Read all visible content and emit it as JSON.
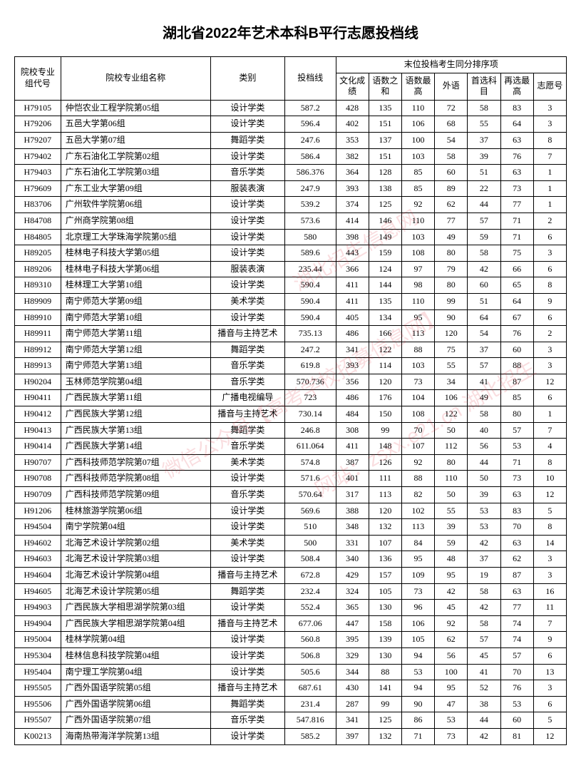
{
  "title": "湖北省2022年艺术本科B平行志愿投档线",
  "headers": {
    "code": "院校专业组代号",
    "name": "院校专业组名称",
    "category": "类别",
    "score": "投档线",
    "tiebreak_group": "末位投档考生同分排序项",
    "culture": "文化成绩",
    "sum2": "语数之和",
    "max2": "语数最高",
    "foreign": "外语",
    "first": "首选科目",
    "re_high": "再选最高",
    "wish": "志愿号"
  },
  "col_widths": {
    "code": "56px",
    "name": "182px",
    "category": "90px",
    "score": "62px",
    "small": "40px"
  },
  "rows": [
    [
      "H79105",
      "仲恺农业工程学院第05组",
      "设计学类",
      "587.2",
      "428",
      "135",
      "110",
      "72",
      "58",
      "83",
      "3"
    ],
    [
      "H79206",
      "五邑大学第06组",
      "设计学类",
      "596.4",
      "402",
      "151",
      "106",
      "68",
      "55",
      "64",
      "3"
    ],
    [
      "H79207",
      "五邑大学第07组",
      "舞蹈学类",
      "247.6",
      "353",
      "137",
      "100",
      "54",
      "37",
      "63",
      "8"
    ],
    [
      "H79402",
      "广东石油化工学院第02组",
      "设计学类",
      "586.4",
      "382",
      "151",
      "103",
      "58",
      "39",
      "76",
      "7"
    ],
    [
      "H79403",
      "广东石油化工学院第03组",
      "音乐学类",
      "586.376",
      "364",
      "128",
      "85",
      "60",
      "51",
      "63",
      "1"
    ],
    [
      "H79609",
      "广东工业大学第09组",
      "服装表演",
      "247.9",
      "393",
      "138",
      "85",
      "89",
      "22",
      "73",
      "1"
    ],
    [
      "H83706",
      "广州软件学院第06组",
      "设计学类",
      "539.2",
      "374",
      "125",
      "92",
      "62",
      "44",
      "77",
      "1"
    ],
    [
      "H84708",
      "广州商学院第08组",
      "设计学类",
      "573.6",
      "414",
      "146",
      "110",
      "77",
      "57",
      "71",
      "2"
    ],
    [
      "H84805",
      "北京理工大学珠海学院第05组",
      "设计学类",
      "580",
      "398",
      "149",
      "103",
      "49",
      "59",
      "71",
      "6"
    ],
    [
      "H89205",
      "桂林电子科技大学第05组",
      "设计学类",
      "589.6",
      "443",
      "159",
      "108",
      "80",
      "58",
      "75",
      "3"
    ],
    [
      "H89206",
      "桂林电子科技大学第06组",
      "服装表演",
      "235.44",
      "366",
      "124",
      "97",
      "79",
      "42",
      "66",
      "6"
    ],
    [
      "H89310",
      "桂林理工大学第10组",
      "设计学类",
      "590.4",
      "411",
      "144",
      "98",
      "80",
      "60",
      "65",
      "8"
    ],
    [
      "H89909",
      "南宁师范大学第09组",
      "美术学类",
      "590.4",
      "411",
      "135",
      "110",
      "99",
      "51",
      "64",
      "9"
    ],
    [
      "H89910",
      "南宁师范大学第10组",
      "设计学类",
      "590.4",
      "405",
      "134",
      "95",
      "90",
      "64",
      "67",
      "6"
    ],
    [
      "H89911",
      "南宁师范大学第11组",
      "播音与主持艺术",
      "735.13",
      "486",
      "166",
      "113",
      "120",
      "54",
      "76",
      "2"
    ],
    [
      "H89912",
      "南宁师范大学第12组",
      "舞蹈学类",
      "247.2",
      "341",
      "122",
      "88",
      "75",
      "37",
      "60",
      "3"
    ],
    [
      "H89913",
      "南宁师范大学第13组",
      "音乐学类",
      "619.8",
      "393",
      "114",
      "103",
      "55",
      "57",
      "88",
      "3"
    ],
    [
      "H90204",
      "玉林师范学院第04组",
      "音乐学类",
      "570.736",
      "356",
      "120",
      "73",
      "34",
      "41",
      "87",
      "12"
    ],
    [
      "H90411",
      "广西民族大学第11组",
      "广播电视编导",
      "723",
      "486",
      "176",
      "104",
      "106",
      "49",
      "85",
      "6"
    ],
    [
      "H90412",
      "广西民族大学第12组",
      "播音与主持艺术",
      "730.14",
      "484",
      "150",
      "108",
      "122",
      "58",
      "80",
      "1"
    ],
    [
      "H90413",
      "广西民族大学第13组",
      "舞蹈学类",
      "246.8",
      "308",
      "99",
      "70",
      "50",
      "40",
      "57",
      "7"
    ],
    [
      "H90414",
      "广西民族大学第14组",
      "音乐学类",
      "611.064",
      "411",
      "148",
      "107",
      "112",
      "56",
      "53",
      "4"
    ],
    [
      "H90707",
      "广西科技师范学院第07组",
      "美术学类",
      "574.8",
      "387",
      "126",
      "92",
      "80",
      "44",
      "71",
      "8"
    ],
    [
      "H90708",
      "广西科技师范学院第08组",
      "设计学类",
      "571.6",
      "401",
      "111",
      "88",
      "110",
      "50",
      "73",
      "10"
    ],
    [
      "H90709",
      "广西科技师范学院第09组",
      "音乐学类",
      "570.64",
      "317",
      "113",
      "82",
      "50",
      "39",
      "63",
      "12"
    ],
    [
      "H91206",
      "桂林旅游学院第06组",
      "设计学类",
      "569.6",
      "388",
      "120",
      "102",
      "55",
      "53",
      "83",
      "5"
    ],
    [
      "H94504",
      "南宁学院第04组",
      "设计学类",
      "510",
      "348",
      "132",
      "113",
      "39",
      "53",
      "70",
      "8"
    ],
    [
      "H94602",
      "北海艺术设计学院第02组",
      "美术学类",
      "500",
      "331",
      "107",
      "84",
      "59",
      "42",
      "63",
      "14"
    ],
    [
      "H94603",
      "北海艺术设计学院第03组",
      "设计学类",
      "508.4",
      "340",
      "136",
      "95",
      "48",
      "37",
      "62",
      "3"
    ],
    [
      "H94604",
      "北海艺术设计学院第04组",
      "播音与主持艺术",
      "672.8",
      "429",
      "157",
      "109",
      "95",
      "19",
      "87",
      "3"
    ],
    [
      "H94605",
      "北海艺术设计学院第05组",
      "舞蹈学类",
      "232.4",
      "324",
      "105",
      "73",
      "42",
      "58",
      "63",
      "16"
    ],
    [
      "H94903",
      "广西民族大学相思湖学院第03组",
      "设计学类",
      "552.4",
      "365",
      "130",
      "96",
      "45",
      "42",
      "77",
      "11"
    ],
    [
      "H94904",
      "广西民族大学相思湖学院第04组",
      "播音与主持艺术",
      "677.06",
      "447",
      "158",
      "106",
      "92",
      "58",
      "74",
      "7"
    ],
    [
      "H95004",
      "桂林学院第04组",
      "设计学类",
      "560.8",
      "395",
      "139",
      "105",
      "62",
      "57",
      "74",
      "9"
    ],
    [
      "H95304",
      "桂林信息科技学院第04组",
      "设计学类",
      "506.8",
      "329",
      "130",
      "94",
      "56",
      "45",
      "57",
      "6"
    ],
    [
      "H95404",
      "南宁理工学院第04组",
      "设计学类",
      "505.6",
      "344",
      "88",
      "53",
      "100",
      "41",
      "70",
      "13"
    ],
    [
      "H95505",
      "广西外国语学院第05组",
      "播音与主持艺术",
      "687.61",
      "430",
      "141",
      "94",
      "95",
      "52",
      "76",
      "3"
    ],
    [
      "H95506",
      "广西外国语学院第06组",
      "舞蹈学类",
      "231.4",
      "287",
      "99",
      "90",
      "47",
      "38",
      "53",
      "6"
    ],
    [
      "H95507",
      "广西外国语学院第07组",
      "音乐学类",
      "547.816",
      "341",
      "125",
      "86",
      "53",
      "44",
      "60",
      "5"
    ],
    [
      "K00213",
      "海南热带海洋学院第13组",
      "设计学类",
      "585.2",
      "397",
      "132",
      "71",
      "73",
      "42",
      "81",
      "12"
    ]
  ],
  "watermarks": [
    "湖北招生信息网",
    "微信公众号【高考学校招募信息网】",
    "网站：zsxx.e21.cn 湖北招生"
  ]
}
